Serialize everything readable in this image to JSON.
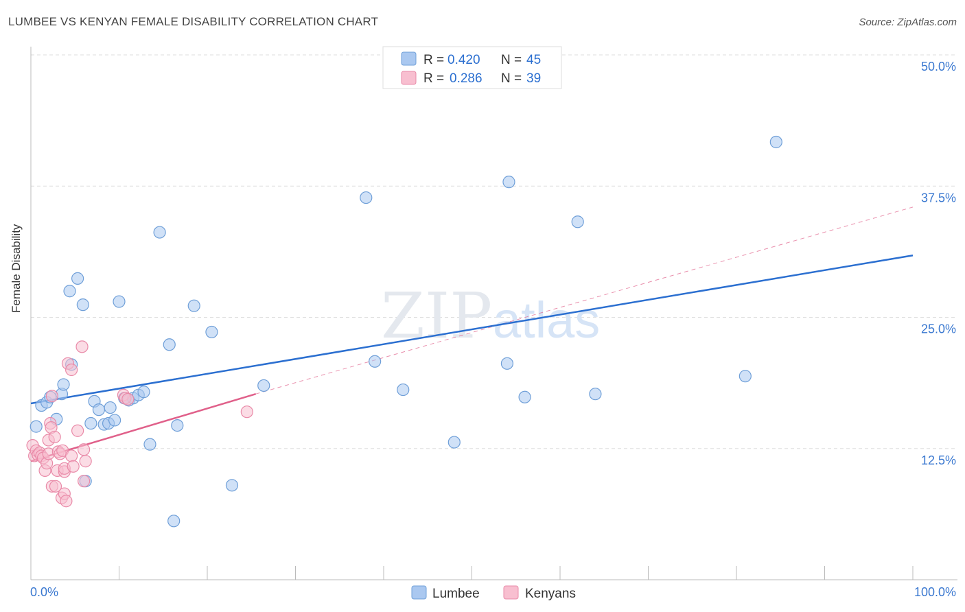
{
  "title": "LUMBEE VS KENYAN FEMALE DISABILITY CORRELATION CHART",
  "source": "Source: ZipAtlas.com",
  "watermark": {
    "zip": "ZIP",
    "atlas": "atlas"
  },
  "colors": {
    "lumbee_fill": "#aac8f0",
    "lumbee_stroke": "#6f9fd8",
    "lumbee_line": "#2b6fd0",
    "kenyan_fill": "#f8bfd0",
    "kenyan_stroke": "#e98aa8",
    "kenyan_line": "#e0608a",
    "tick_label": "#3a78d0",
    "grid": "#dddddd"
  },
  "legend_top": {
    "rows": [
      {
        "r_label": "R = ",
        "r_value": "0.420",
        "n_label": "N = ",
        "n_value": "45"
      },
      {
        "r_label": "R = ",
        "r_value": "0.286",
        "n_label": "N = ",
        "n_value": "39"
      }
    ]
  },
  "legend_bottom": {
    "items": [
      "Lumbee",
      "Kenyans"
    ]
  },
  "chart_data": {
    "type": "scatter",
    "title": "LUMBEE VS KENYAN FEMALE DISABILITY CORRELATION CHART",
    "xlabel": "",
    "ylabel": "Female Disability",
    "xlim": [
      0,
      100
    ],
    "ylim": [
      0,
      50
    ],
    "x_tick_labels": [
      "0.0%",
      "100.0%"
    ],
    "y_ticks": [
      12.5,
      25.0,
      37.5,
      50.0
    ],
    "y_tick_labels": [
      "12.5%",
      "25.0%",
      "37.5%",
      "50.0%"
    ],
    "grid": true,
    "legend_position": "top-center",
    "series": [
      {
        "name": "Lumbee",
        "points": [
          [
            0.6,
            14.6
          ],
          [
            1.2,
            16.6
          ],
          [
            1.8,
            16.9
          ],
          [
            2.2,
            17.4
          ],
          [
            2.9,
            15.3
          ],
          [
            3.5,
            17.7
          ],
          [
            3.7,
            18.6
          ],
          [
            4.4,
            27.5
          ],
          [
            4.6,
            20.5
          ],
          [
            5.3,
            28.7
          ],
          [
            5.9,
            26.2
          ],
          [
            6.2,
            9.4
          ],
          [
            6.8,
            14.9
          ],
          [
            7.2,
            17.0
          ],
          [
            7.7,
            16.2
          ],
          [
            8.3,
            14.8
          ],
          [
            8.8,
            14.9
          ],
          [
            9.0,
            16.4
          ],
          [
            9.5,
            15.2
          ],
          [
            10.0,
            26.5
          ],
          [
            10.6,
            17.3
          ],
          [
            11.1,
            17.1
          ],
          [
            11.6,
            17.3
          ],
          [
            12.2,
            17.6
          ],
          [
            12.8,
            17.9
          ],
          [
            13.5,
            12.9
          ],
          [
            14.6,
            33.1
          ],
          [
            15.7,
            22.4
          ],
          [
            16.2,
            5.6
          ],
          [
            16.6,
            14.7
          ],
          [
            18.5,
            26.1
          ],
          [
            20.5,
            23.6
          ],
          [
            22.8,
            9.0
          ],
          [
            26.4,
            18.5
          ],
          [
            38.0,
            36.4
          ],
          [
            39.0,
            20.8
          ],
          [
            42.2,
            18.1
          ],
          [
            48.0,
            13.1
          ],
          [
            54.0,
            20.6
          ],
          [
            54.2,
            37.9
          ],
          [
            56.0,
            17.4
          ],
          [
            62.0,
            34.1
          ],
          [
            64.0,
            17.7
          ],
          [
            81.0,
            19.4
          ],
          [
            84.5,
            41.7
          ]
        ],
        "trend": {
          "x": [
            0,
            100
          ],
          "y": [
            16.8,
            30.9
          ]
        }
      },
      {
        "name": "Kenyans",
        "points": [
          [
            0.2,
            12.8
          ],
          [
            0.4,
            11.8
          ],
          [
            0.6,
            12.3
          ],
          [
            0.8,
            11.9
          ],
          [
            1.0,
            12.1
          ],
          [
            1.2,
            11.8
          ],
          [
            1.4,
            11.6
          ],
          [
            1.6,
            10.4
          ],
          [
            1.8,
            11.1
          ],
          [
            2.0,
            12.0
          ],
          [
            2.0,
            13.3
          ],
          [
            2.2,
            14.9
          ],
          [
            2.3,
            14.5
          ],
          [
            2.4,
            17.5
          ],
          [
            2.4,
            8.9
          ],
          [
            2.7,
            13.6
          ],
          [
            2.8,
            8.9
          ],
          [
            3.0,
            10.4
          ],
          [
            3.1,
            12.2
          ],
          [
            3.3,
            12.0
          ],
          [
            3.5,
            7.8
          ],
          [
            3.6,
            12.3
          ],
          [
            3.8,
            10.3
          ],
          [
            3.8,
            8.2
          ],
          [
            3.8,
            10.6
          ],
          [
            4.0,
            7.5
          ],
          [
            4.2,
            20.6
          ],
          [
            4.6,
            11.8
          ],
          [
            4.6,
            20.0
          ],
          [
            4.8,
            10.8
          ],
          [
            5.3,
            14.2
          ],
          [
            5.8,
            22.2
          ],
          [
            6.0,
            9.4
          ],
          [
            6.0,
            12.4
          ],
          [
            6.2,
            11.3
          ],
          [
            10.5,
            17.6
          ],
          [
            10.7,
            17.3
          ],
          [
            11.0,
            17.2
          ],
          [
            24.5,
            16.0
          ]
        ],
        "trend": {
          "x": [
            0,
            25.5
          ],
          "y": [
            11.3,
            17.7
          ]
        },
        "trend_extension": {
          "x": [
            25.5,
            100
          ],
          "y": [
            17.7,
            35.5
          ]
        }
      }
    ]
  }
}
